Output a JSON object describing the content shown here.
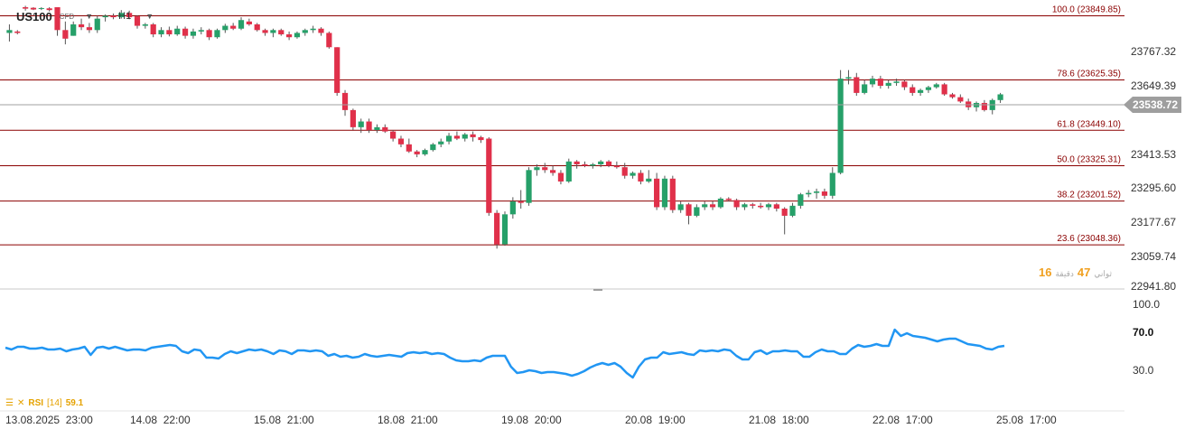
{
  "header": {
    "symbol": "US100",
    "instrument_type": "CFD",
    "timeframe": "H1"
  },
  "countdown": {
    "minutes": "16",
    "seconds": "47",
    "minutes_label": "دقيقة",
    "seconds_label": "ثواني"
  },
  "rsi_legend": {
    "name": "RSI",
    "period": "[14]",
    "value": "59.1"
  },
  "colors": {
    "up": "#26a069",
    "down": "#e0304a",
    "fib_line": "#8b0000",
    "fib_text": "#8b0000",
    "rsi_line": "#2196f3",
    "current_price_bg": "#9e9e9e",
    "countdown": "#f0a020",
    "rsi_legend": "#e5a200"
  },
  "chart_data": [
    {
      "type": "candlestick",
      "title": "",
      "ylim": [
        22900,
        23880
      ],
      "y_ticks": [
        "23767.32",
        "23649.39",
        "23413.53",
        "23295.60",
        "23177.67",
        "23059.74",
        "22941.80"
      ],
      "x_ticks": [
        "13.08.2025  23:00",
        "14.08  22:00",
        "15.08  21:00",
        "18.08  21:00",
        "19.08  20:00",
        "20.08  19:00",
        "21.08  18:00",
        "22.08  17:00",
        "25.08  17:00"
      ],
      "current_price": "23538.72",
      "current_price_value": 23538.72,
      "fib_levels": [
        {
          "value": 23849.85,
          "label": "100.0 (23849.85)"
        },
        {
          "value": 23625.35,
          "label": "78.6 (23625.35)"
        },
        {
          "value": 23449.1,
          "label": "61.8 (23449.10)"
        },
        {
          "value": 23325.31,
          "label": "50.0 (23325.31)"
        },
        {
          "value": 23201.52,
          "label": "38.2 (23201.52)"
        },
        {
          "value": 23048.36,
          "label": "23.6 (23048.36)"
        }
      ],
      "candles": [
        {
          "o": 23790,
          "h": 23820,
          "l": 23760,
          "c": 23800
        },
        {
          "o": 23795,
          "h": 23800,
          "l": 23785,
          "c": 23790
        },
        {
          "o": 23880,
          "h": 23885,
          "l": 23868,
          "c": 23875
        },
        {
          "o": 23878,
          "h": 23880,
          "l": 23870,
          "c": 23872
        },
        {
          "o": 23875,
          "h": 23880,
          "l": 23870,
          "c": 23877
        },
        {
          "o": 23876,
          "h": 23880,
          "l": 23865,
          "c": 23870
        },
        {
          "o": 23880,
          "h": 23880,
          "l": 23780,
          "c": 23800
        },
        {
          "o": 23800,
          "h": 23830,
          "l": 23750,
          "c": 23770
        },
        {
          "o": 23780,
          "h": 23830,
          "l": 23780,
          "c": 23820
        },
        {
          "o": 23820,
          "h": 23840,
          "l": 23800,
          "c": 23810
        },
        {
          "o": 23810,
          "h": 23825,
          "l": 23790,
          "c": 23800
        },
        {
          "o": 23800,
          "h": 23850,
          "l": 23790,
          "c": 23840
        },
        {
          "o": 23845,
          "h": 23855,
          "l": 23830,
          "c": 23850
        },
        {
          "o": 23850,
          "h": 23858,
          "l": 23838,
          "c": 23845
        },
        {
          "o": 23845,
          "h": 23870,
          "l": 23840,
          "c": 23860
        },
        {
          "o": 23860,
          "h": 23868,
          "l": 23838,
          "c": 23845
        },
        {
          "o": 23848,
          "h": 23852,
          "l": 23805,
          "c": 23815
        },
        {
          "o": 23815,
          "h": 23825,
          "l": 23805,
          "c": 23820
        },
        {
          "o": 23820,
          "h": 23825,
          "l": 23775,
          "c": 23785
        },
        {
          "o": 23785,
          "h": 23810,
          "l": 23775,
          "c": 23800
        },
        {
          "o": 23800,
          "h": 23812,
          "l": 23778,
          "c": 23785
        },
        {
          "o": 23785,
          "h": 23815,
          "l": 23780,
          "c": 23805
        },
        {
          "o": 23805,
          "h": 23812,
          "l": 23770,
          "c": 23780
        },
        {
          "o": 23780,
          "h": 23805,
          "l": 23770,
          "c": 23795
        },
        {
          "o": 23795,
          "h": 23810,
          "l": 23785,
          "c": 23800
        },
        {
          "o": 23800,
          "h": 23805,
          "l": 23765,
          "c": 23775
        },
        {
          "o": 23775,
          "h": 23805,
          "l": 23770,
          "c": 23800
        },
        {
          "o": 23800,
          "h": 23822,
          "l": 23790,
          "c": 23815
        },
        {
          "o": 23815,
          "h": 23825,
          "l": 23800,
          "c": 23805
        },
        {
          "o": 23805,
          "h": 23845,
          "l": 23800,
          "c": 23835
        },
        {
          "o": 23830,
          "h": 23840,
          "l": 23815,
          "c": 23820
        },
        {
          "o": 23820,
          "h": 23825,
          "l": 23795,
          "c": 23800
        },
        {
          "o": 23800,
          "h": 23805,
          "l": 23780,
          "c": 23790
        },
        {
          "o": 23790,
          "h": 23805,
          "l": 23775,
          "c": 23800
        },
        {
          "o": 23800,
          "h": 23805,
          "l": 23780,
          "c": 23785
        },
        {
          "o": 23785,
          "h": 23795,
          "l": 23765,
          "c": 23775
        },
        {
          "o": 23775,
          "h": 23795,
          "l": 23770,
          "c": 23790
        },
        {
          "o": 23790,
          "h": 23805,
          "l": 23780,
          "c": 23800
        },
        {
          "o": 23800,
          "h": 23815,
          "l": 23790,
          "c": 23805
        },
        {
          "o": 23805,
          "h": 23810,
          "l": 23780,
          "c": 23790
        },
        {
          "o": 23790,
          "h": 23795,
          "l": 23735,
          "c": 23740
        },
        {
          "o": 23740,
          "h": 23740,
          "l": 23570,
          "c": 23580
        },
        {
          "o": 23580,
          "h": 23590,
          "l": 23500,
          "c": 23520
        },
        {
          "o": 23520,
          "h": 23525,
          "l": 23450,
          "c": 23460
        },
        {
          "o": 23460,
          "h": 23490,
          "l": 23440,
          "c": 23480
        },
        {
          "o": 23480,
          "h": 23490,
          "l": 23440,
          "c": 23450
        },
        {
          "o": 23450,
          "h": 23470,
          "l": 23440,
          "c": 23460
        },
        {
          "o": 23460,
          "h": 23470,
          "l": 23440,
          "c": 23445
        },
        {
          "o": 23445,
          "h": 23450,
          "l": 23410,
          "c": 23420
        },
        {
          "o": 23420,
          "h": 23430,
          "l": 23390,
          "c": 23400
        },
        {
          "o": 23400,
          "h": 23420,
          "l": 23370,
          "c": 23375
        },
        {
          "o": 23375,
          "h": 23380,
          "l": 23355,
          "c": 23365
        },
        {
          "o": 23365,
          "h": 23385,
          "l": 23360,
          "c": 23380
        },
        {
          "o": 23380,
          "h": 23405,
          "l": 23375,
          "c": 23400
        },
        {
          "o": 23400,
          "h": 23420,
          "l": 23390,
          "c": 23410
        },
        {
          "o": 23410,
          "h": 23440,
          "l": 23400,
          "c": 23430
        },
        {
          "o": 23430,
          "h": 23445,
          "l": 23415,
          "c": 23420
        },
        {
          "o": 23420,
          "h": 23440,
          "l": 23410,
          "c": 23435
        },
        {
          "o": 23435,
          "h": 23445,
          "l": 23410,
          "c": 23425
        },
        {
          "o": 23425,
          "h": 23430,
          "l": 23405,
          "c": 23415
        },
        {
          "o": 23420,
          "h": 23425,
          "l": 23150,
          "c": 23160
        },
        {
          "o": 23160,
          "h": 23170,
          "l": 23035,
          "c": 23050
        },
        {
          "o": 23050,
          "h": 23165,
          "l": 23045,
          "c": 23155
        },
        {
          "o": 23155,
          "h": 23215,
          "l": 23140,
          "c": 23200
        },
        {
          "o": 23200,
          "h": 23240,
          "l": 23175,
          "c": 23195
        },
        {
          "o": 23195,
          "h": 23320,
          "l": 23185,
          "c": 23310
        },
        {
          "o": 23310,
          "h": 23330,
          "l": 23290,
          "c": 23320
        },
        {
          "o": 23320,
          "h": 23335,
          "l": 23300,
          "c": 23310
        },
        {
          "o": 23310,
          "h": 23325,
          "l": 23290,
          "c": 23300
        },
        {
          "o": 23300,
          "h": 23310,
          "l": 23260,
          "c": 23270
        },
        {
          "o": 23270,
          "h": 23350,
          "l": 23265,
          "c": 23340
        },
        {
          "o": 23340,
          "h": 23345,
          "l": 23315,
          "c": 23330
        },
        {
          "o": 23330,
          "h": 23340,
          "l": 23320,
          "c": 23325
        },
        {
          "o": 23325,
          "h": 23335,
          "l": 23315,
          "c": 23330
        },
        {
          "o": 23330,
          "h": 23345,
          "l": 23320,
          "c": 23340
        },
        {
          "o": 23340,
          "h": 23345,
          "l": 23320,
          "c": 23325
        },
        {
          "o": 23325,
          "h": 23340,
          "l": 23315,
          "c": 23320
        },
        {
          "o": 23320,
          "h": 23335,
          "l": 23280,
          "c": 23290
        },
        {
          "o": 23290,
          "h": 23305,
          "l": 23280,
          "c": 23300
        },
        {
          "o": 23300,
          "h": 23310,
          "l": 23260,
          "c": 23270
        },
        {
          "o": 23270,
          "h": 23310,
          "l": 23265,
          "c": 23280
        },
        {
          "o": 23280,
          "h": 23300,
          "l": 23170,
          "c": 23180
        },
        {
          "o": 23180,
          "h": 23290,
          "l": 23170,
          "c": 23280
        },
        {
          "o": 23280,
          "h": 23290,
          "l": 23160,
          "c": 23170
        },
        {
          "o": 23170,
          "h": 23200,
          "l": 23160,
          "c": 23190
        },
        {
          "o": 23190,
          "h": 23195,
          "l": 23120,
          "c": 23150
        },
        {
          "o": 23150,
          "h": 23190,
          "l": 23145,
          "c": 23180
        },
        {
          "o": 23180,
          "h": 23200,
          "l": 23170,
          "c": 23190
        },
        {
          "o": 23190,
          "h": 23200,
          "l": 23170,
          "c": 23180
        },
        {
          "o": 23180,
          "h": 23215,
          "l": 23175,
          "c": 23210
        },
        {
          "o": 23210,
          "h": 23215,
          "l": 23200,
          "c": 23205
        },
        {
          "o": 23205,
          "h": 23210,
          "l": 23170,
          "c": 23180
        },
        {
          "o": 23180,
          "h": 23195,
          "l": 23170,
          "c": 23190
        },
        {
          "o": 23190,
          "h": 23195,
          "l": 23175,
          "c": 23185
        },
        {
          "o": 23185,
          "h": 23195,
          "l": 23175,
          "c": 23180
        },
        {
          "o": 23180,
          "h": 23195,
          "l": 23170,
          "c": 23190
        },
        {
          "o": 23190,
          "h": 23195,
          "l": 23165,
          "c": 23175
        },
        {
          "o": 23175,
          "h": 23180,
          "l": 23085,
          "c": 23150
        },
        {
          "o": 23150,
          "h": 23195,
          "l": 23145,
          "c": 23185
        },
        {
          "o": 23185,
          "h": 23230,
          "l": 23175,
          "c": 23225
        },
        {
          "o": 23225,
          "h": 23240,
          "l": 23215,
          "c": 23230
        },
        {
          "o": 23230,
          "h": 23245,
          "l": 23210,
          "c": 23235
        },
        {
          "o": 23235,
          "h": 23245,
          "l": 23210,
          "c": 23220
        },
        {
          "o": 23220,
          "h": 23320,
          "l": 23210,
          "c": 23300
        },
        {
          "o": 23300,
          "h": 23660,
          "l": 23295,
          "c": 23630
        },
        {
          "o": 23630,
          "h": 23660,
          "l": 23610,
          "c": 23635
        },
        {
          "o": 23635,
          "h": 23650,
          "l": 23570,
          "c": 23580
        },
        {
          "o": 23580,
          "h": 23625,
          "l": 23575,
          "c": 23610
        },
        {
          "o": 23610,
          "h": 23640,
          "l": 23600,
          "c": 23630
        },
        {
          "o": 23630,
          "h": 23640,
          "l": 23595,
          "c": 23605
        },
        {
          "o": 23605,
          "h": 23625,
          "l": 23595,
          "c": 23615
        },
        {
          "o": 23615,
          "h": 23630,
          "l": 23605,
          "c": 23620
        },
        {
          "o": 23620,
          "h": 23625,
          "l": 23590,
          "c": 23600
        },
        {
          "o": 23600,
          "h": 23610,
          "l": 23570,
          "c": 23580
        },
        {
          "o": 23580,
          "h": 23595,
          "l": 23570,
          "c": 23590
        },
        {
          "o": 23590,
          "h": 23605,
          "l": 23580,
          "c": 23600
        },
        {
          "o": 23600,
          "h": 23615,
          "l": 23595,
          "c": 23610
        },
        {
          "o": 23610,
          "h": 23615,
          "l": 23570,
          "c": 23575
        },
        {
          "o": 23575,
          "h": 23580,
          "l": 23560,
          "c": 23565
        },
        {
          "o": 23565,
          "h": 23575,
          "l": 23545,
          "c": 23550
        },
        {
          "o": 23550,
          "h": 23560,
          "l": 23520,
          "c": 23530
        },
        {
          "o": 23530,
          "h": 23550,
          "l": 23515,
          "c": 23545
        },
        {
          "o": 23545,
          "h": 23555,
          "l": 23515,
          "c": 23520
        },
        {
          "o": 23520,
          "h": 23560,
          "l": 23505,
          "c": 23555
        },
        {
          "o": 23555,
          "h": 23580,
          "l": 23545,
          "c": 23575
        }
      ]
    },
    {
      "type": "line",
      "title": "",
      "series": [
        {
          "name": "RSI [14]",
          "values": [
            51,
            49,
            52,
            52,
            50,
            50,
            51,
            49,
            49,
            50,
            47,
            49,
            50,
            52,
            43,
            51,
            52,
            50,
            52,
            50,
            48,
            49,
            49,
            48,
            51,
            52,
            53,
            54,
            53,
            47,
            45,
            49,
            48,
            40,
            40,
            39,
            44,
            47,
            45,
            47,
            49,
            48,
            49,
            47,
            44,
            48,
            47,
            44,
            48,
            48,
            47,
            48,
            47,
            42,
            44,
            41,
            42,
            40,
            41,
            44,
            42,
            41,
            42,
            43,
            42,
            41,
            45,
            46,
            45,
            46,
            44,
            45,
            44,
            40,
            37,
            36,
            36,
            37,
            36,
            40,
            42,
            42,
            42,
            30,
            23,
            24,
            26,
            25,
            23,
            24,
            24,
            23,
            22,
            20,
            22,
            25,
            29,
            32,
            34,
            32,
            34,
            30,
            23,
            18,
            30,
            38,
            40,
            40,
            46,
            44,
            45,
            46,
            44,
            43,
            48,
            47,
            48,
            47,
            49,
            48,
            42,
            38,
            38,
            46,
            48,
            44,
            47,
            47,
            48,
            47,
            47,
            41,
            41,
            46,
            49,
            47,
            47,
            44,
            44,
            50,
            54,
            52,
            53,
            55,
            53,
            53,
            71,
            64,
            67,
            64,
            63,
            62,
            60,
            58,
            60,
            61,
            61,
            58,
            55,
            54,
            53,
            50,
            49,
            52,
            53
          ]
        }
      ],
      "y_ticks": [
        "100.0",
        "70.0",
        "30.0"
      ],
      "ylim": [
        0,
        100
      ]
    }
  ]
}
